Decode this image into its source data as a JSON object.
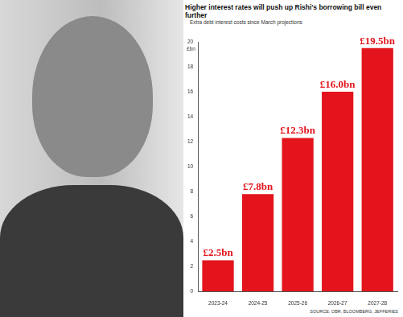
{
  "chart_data": {
    "type": "bar",
    "title": "Higher interest rates will push up Rishi's borrowing bill even further",
    "subtitle": "Extra debt interest costs since March projections",
    "ylabel": "£bn",
    "source": "SOURCE: OBR, BLOOMBERG, JEFFERIES",
    "categories": [
      "2023-24",
      "2024-25",
      "2025-26",
      "2026-27",
      "2027-28"
    ],
    "values": [
      2.5,
      7.8,
      12.3,
      16.0,
      19.5
    ],
    "value_labels": [
      "£2.5bn",
      "£7.8bn",
      "£12.3bn",
      "£16.0bn",
      "£19.5bn"
    ],
    "color": "#e3141b",
    "ylim": [
      0,
      20
    ],
    "yticks": [
      0,
      2,
      4,
      6,
      8,
      10,
      12,
      14,
      16,
      18,
      20
    ],
    "grid": false,
    "data_labels": true
  }
}
